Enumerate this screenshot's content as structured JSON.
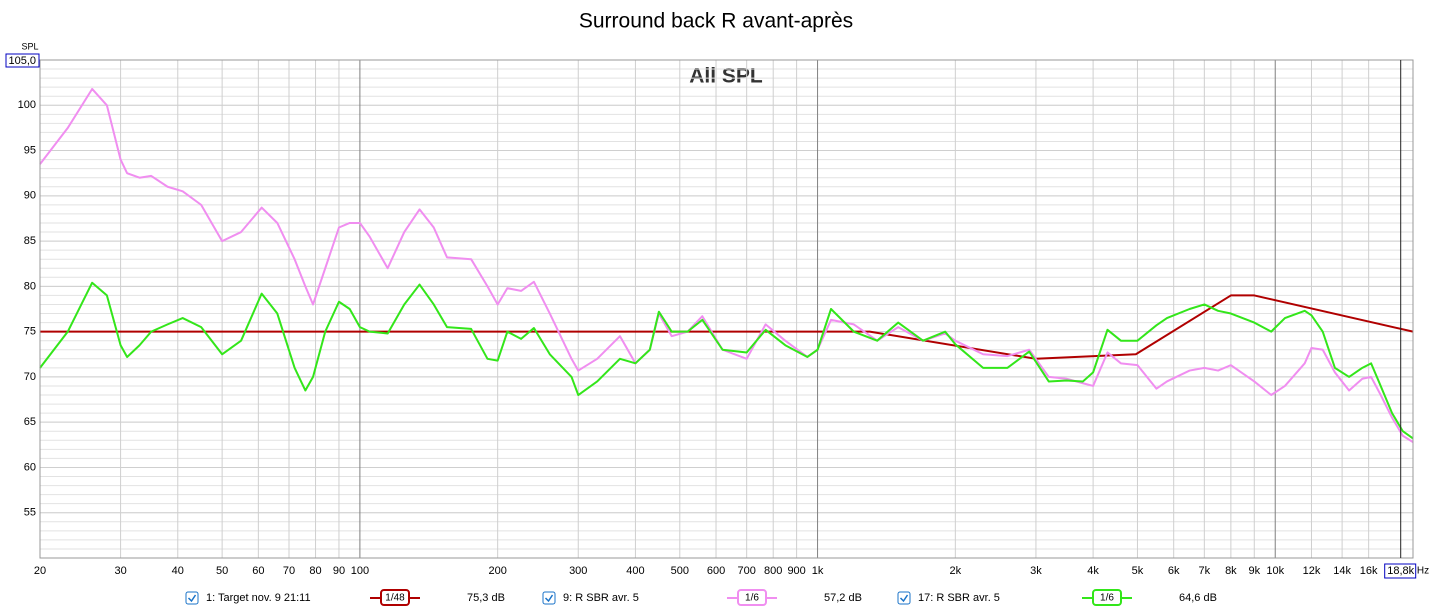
{
  "chart_data": {
    "type": "line",
    "title": "Surround back R avant-après",
    "annotation": "All SPL",
    "ylabel": "SPL",
    "xlabel": "Hz",
    "xscale": "log",
    "grid": true,
    "xlim": [
      20,
      20000
    ],
    "ylim": [
      50,
      105
    ],
    "yticks": [
      55,
      60,
      65,
      70,
      75,
      80,
      85,
      90,
      95,
      100,
      {
        "value": 105,
        "label": "105,0"
      }
    ],
    "xticks": [
      20,
      30,
      40,
      50,
      60,
      70,
      80,
      90,
      100,
      200,
      300,
      400,
      500,
      600,
      700,
      800,
      900,
      {
        "value": 1000,
        "label": "1k"
      },
      {
        "value": 2000,
        "label": "2k"
      },
      {
        "value": 3000,
        "label": "3k"
      },
      {
        "value": 4000,
        "label": "4k"
      },
      {
        "value": 5000,
        "label": "5k"
      },
      {
        "value": 6000,
        "label": "6k"
      },
      {
        "value": 7000,
        "label": "7k"
      },
      {
        "value": 8000,
        "label": "8k"
      },
      {
        "value": 9000,
        "label": "9k"
      },
      {
        "value": 10000,
        "label": "10k"
      },
      {
        "value": 12000,
        "label": "12k"
      },
      {
        "value": 14000,
        "label": "14k"
      },
      {
        "value": 16000,
        "label": "16k"
      }
    ],
    "cursor": {
      "value": 18800,
      "label": "18,8k"
    },
    "x": [
      20,
      23,
      26,
      28,
      30,
      31,
      33,
      35,
      38,
      41,
      45,
      50,
      55,
      61,
      66,
      72,
      76,
      79,
      84,
      90,
      95,
      100,
      105,
      115,
      125,
      135,
      145,
      155,
      175,
      190,
      200,
      210,
      225,
      240,
      260,
      290,
      300,
      330,
      370,
      400,
      430,
      450,
      480,
      520,
      560,
      620,
      700,
      770,
      850,
      950,
      1000,
      1070,
      1200,
      1350,
      1500,
      1700,
      1900,
      2000,
      2300,
      2600,
      2900,
      3200,
      3500,
      3800,
      4000,
      4300,
      4600,
      5000,
      5500,
      5800,
      6500,
      7000,
      7500,
      8000,
      9000,
      9800,
      10500,
      11600,
      12000,
      12700,
      13500,
      14500,
      15500,
      16200,
      17000,
      18000,
      19000,
      20000
    ],
    "series": [
      {
        "name": "1: Target nov. 9 21:11",
        "smoothing": "1/48",
        "level": "75,3 dB",
        "color": "#b00000",
        "x": [
          20,
          1300,
          3000,
          4960,
          8000,
          9000,
          20000
        ],
        "values": [
          75,
          75,
          72,
          72.5,
          79,
          79,
          75
        ]
      },
      {
        "name": "9: R SBR avr. 5",
        "smoothing": "1/6",
        "level": "57,2 dB",
        "color": "#f08ef0",
        "values": [
          93.5,
          97.5,
          101.8,
          100,
          94,
          92.5,
          92,
          92.2,
          91,
          90.5,
          89,
          85,
          86,
          88.7,
          87,
          83,
          80,
          78,
          82,
          86.5,
          87,
          87,
          85.5,
          82,
          86,
          88.5,
          86.5,
          83.2,
          83,
          80,
          78,
          79.8,
          79.5,
          80.5,
          77,
          72,
          70.7,
          72,
          74.5,
          71.5,
          73,
          77,
          74.5,
          75,
          76.7,
          73,
          72,
          75.8,
          74,
          72.2,
          73,
          76.3,
          75.8,
          74,
          75.5,
          74,
          74.8,
          74,
          72.5,
          72.3,
          73,
          70,
          69.8,
          69.3,
          69,
          72.7,
          71.5,
          71.3,
          68.7,
          69.5,
          70.7,
          71,
          70.7,
          71.3,
          69.5,
          68,
          69,
          71.5,
          73.2,
          73,
          70.5,
          68.5,
          69.8,
          70,
          68,
          65.5,
          63.5,
          62.8
        ]
      },
      {
        "name": "17: R SBR avr. 5",
        "smoothing": "1/6",
        "level": "64,6 dB",
        "color": "#33e61a",
        "values": [
          71,
          75,
          80.4,
          79,
          73.5,
          72.2,
          73.5,
          75,
          75.8,
          76.5,
          75.5,
          72.5,
          74,
          79.2,
          77,
          71,
          68.5,
          70,
          75,
          78.3,
          77.5,
          75.5,
          75,
          74.8,
          78,
          80.2,
          78,
          75.5,
          75.3,
          72,
          71.8,
          75,
          74.2,
          75.4,
          72.5,
          70,
          68,
          69.5,
          72,
          71.5,
          73,
          77.2,
          75,
          75,
          76.3,
          73,
          72.7,
          75.2,
          73.5,
          72.2,
          73,
          77.5,
          75,
          74,
          76,
          74,
          75,
          73.6,
          71,
          71,
          72.8,
          69.5,
          69.6,
          69.5,
          70.5,
          75.2,
          74,
          74,
          75.7,
          76.5,
          77.5,
          78,
          77.3,
          77,
          76,
          75,
          76.5,
          77.3,
          76.8,
          75,
          71,
          70,
          71,
          71.5,
          69,
          66,
          64,
          63.2
        ]
      }
    ]
  }
}
